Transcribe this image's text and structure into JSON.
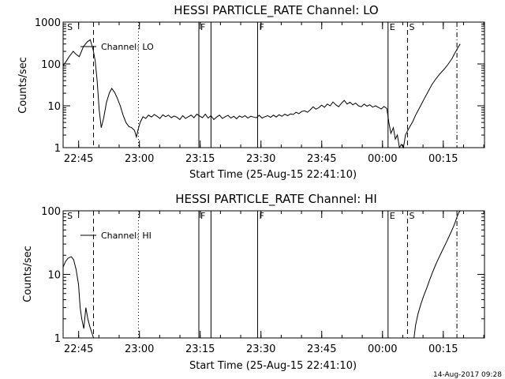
{
  "figure": {
    "timestamp": "14-Aug-2017 09:28"
  },
  "chart_data": [
    {
      "type": "line",
      "title": "HESSI PARTICLE_RATE Channel: LO",
      "xlabel": "Start Time (25-Aug-15 22:41:10)",
      "ylabel": "Counts/sec",
      "y_scale": "log",
      "ylim": [
        1,
        1000
      ],
      "y_ticks": [
        {
          "v": 1,
          "label": "1"
        },
        {
          "v": 10,
          "label": "10"
        },
        {
          "v": 100,
          "label": "100"
        },
        {
          "v": 1000,
          "label": "1000"
        }
      ],
      "x_ticks": [
        "22:45",
        "23:00",
        "23:15",
        "23:30",
        "23:45",
        "00:00",
        "00:15"
      ],
      "x_tick_minutes": [
        3.83,
        18.83,
        33.83,
        48.83,
        63.83,
        78.83,
        93.83
      ],
      "xlim_minutes": [
        0,
        104
      ],
      "legend": {
        "label": "Channel: LO",
        "position": "top-left"
      },
      "markers": [
        {
          "minute": 0.6,
          "label": "S",
          "style": "none"
        },
        {
          "minute": 7.5,
          "label": "",
          "style": "dashed"
        },
        {
          "minute": 18.6,
          "label": "",
          "style": "dotted"
        },
        {
          "minute": 33.5,
          "label": "F",
          "style": "solid"
        },
        {
          "minute": 36.5,
          "label": "",
          "style": "solid"
        },
        {
          "minute": 48.0,
          "label": "F",
          "style": "solid"
        },
        {
          "minute": 80.2,
          "label": "E",
          "style": "solid"
        },
        {
          "minute": 85.0,
          "label": "S",
          "style": "dashed"
        },
        {
          "minute": 97.2,
          "label": "",
          "style": "dashdot"
        }
      ],
      "series": [
        {
          "name": "Channel: LO",
          "points": [
            [
              0,
              90
            ],
            [
              0.6,
              110
            ],
            [
              1.5,
              150
            ],
            [
              2.5,
              200
            ],
            [
              3.2,
              170
            ],
            [
              4,
              150
            ],
            [
              5,
              260
            ],
            [
              6,
              340
            ],
            [
              6.7,
              380
            ],
            [
              7.4,
              220
            ],
            [
              7.9,
              120
            ],
            [
              8.4,
              40
            ],
            [
              8.9,
              8
            ],
            [
              9.4,
              3
            ],
            [
              10,
              5
            ],
            [
              10.7,
              12
            ],
            [
              11.4,
              20
            ],
            [
              12,
              26
            ],
            [
              12.7,
              21
            ],
            [
              13.4,
              15
            ],
            [
              14.1,
              10
            ],
            [
              14.8,
              6
            ],
            [
              15.5,
              4
            ],
            [
              16.2,
              3.2
            ],
            [
              16.9,
              3
            ],
            [
              17.6,
              2.6
            ],
            [
              18.1,
              1.8
            ],
            [
              18.5,
              2.7
            ],
            [
              19,
              4
            ],
            [
              19.7,
              5.5
            ],
            [
              20.4,
              5
            ],
            [
              21.1,
              6
            ],
            [
              21.8,
              5.4
            ],
            [
              22.5,
              6.2
            ],
            [
              23.2,
              5.6
            ],
            [
              23.9,
              5
            ],
            [
              24.6,
              6.1
            ],
            [
              25.3,
              5.5
            ],
            [
              26,
              6
            ],
            [
              26.7,
              5.2
            ],
            [
              27.4,
              5.7
            ],
            [
              28.1,
              5.3
            ],
            [
              28.8,
              4.7
            ],
            [
              29.5,
              5.8
            ],
            [
              30.2,
              5
            ],
            [
              30.9,
              5.5
            ],
            [
              31.6,
              6
            ],
            [
              32.3,
              5.2
            ],
            [
              33,
              6.3
            ],
            [
              33.7,
              5.7
            ],
            [
              34.4,
              5.2
            ],
            [
              35.1,
              6.3
            ],
            [
              35.8,
              5.1
            ],
            [
              36.5,
              5.8
            ],
            [
              37.2,
              4.7
            ],
            [
              37.9,
              5.4
            ],
            [
              38.6,
              6
            ],
            [
              39.3,
              5
            ],
            [
              40,
              5.5
            ],
            [
              40.7,
              5.9
            ],
            [
              41.4,
              5.1
            ],
            [
              42.1,
              5.6
            ],
            [
              42.8,
              4.9
            ],
            [
              43.5,
              5.7
            ],
            [
              44.2,
              5.3
            ],
            [
              44.9,
              5.8
            ],
            [
              45.6,
              5.1
            ],
            [
              46.3,
              5.6
            ],
            [
              47,
              5.4
            ],
            [
              47.7,
              5.2
            ],
            [
              48.4,
              5.9
            ],
            [
              49.1,
              5.1
            ],
            [
              49.8,
              5.5
            ],
            [
              50.5,
              5.8
            ],
            [
              51.2,
              5.3
            ],
            [
              51.9,
              6
            ],
            [
              52.6,
              5.4
            ],
            [
              53.3,
              6.1
            ],
            [
              54,
              5.6
            ],
            [
              54.7,
              6.3
            ],
            [
              55.4,
              5.8
            ],
            [
              56.1,
              6.4
            ],
            [
              56.8,
              6.2
            ],
            [
              57.5,
              7
            ],
            [
              58.2,
              6.5
            ],
            [
              58.9,
              7.3
            ],
            [
              59.6,
              7.6
            ],
            [
              60.3,
              7
            ],
            [
              61,
              8
            ],
            [
              61.7,
              9.5
            ],
            [
              62.4,
              8.3
            ],
            [
              63.1,
              9
            ],
            [
              63.8,
              10.4
            ],
            [
              64.5,
              9.2
            ],
            [
              65.2,
              11
            ],
            [
              65.9,
              10
            ],
            [
              66.6,
              12.3
            ],
            [
              67.3,
              10.6
            ],
            [
              68,
              9.5
            ],
            [
              68.7,
              11.5
            ],
            [
              69.4,
              13.5
            ],
            [
              70.1,
              11
            ],
            [
              70.8,
              12.2
            ],
            [
              71.5,
              10.6
            ],
            [
              72.2,
              11.6
            ],
            [
              72.9,
              10
            ],
            [
              73.6,
              9.5
            ],
            [
              74.3,
              11
            ],
            [
              75,
              9.8
            ],
            [
              75.7,
              10.6
            ],
            [
              76.4,
              9.3
            ],
            [
              77.1,
              10
            ],
            [
              77.8,
              9.2
            ],
            [
              78.5,
              8.4
            ],
            [
              79.2,
              9.6
            ],
            [
              79.9,
              8.6
            ],
            [
              80.4,
              4
            ],
            [
              80.9,
              2.2
            ],
            [
              81.5,
              3
            ],
            [
              82,
              1.6
            ],
            [
              82.5,
              2
            ],
            [
              83,
              1
            ],
            [
              83.5,
              1.2
            ],
            [
              84,
              1
            ],
            [
              84.5,
              2
            ],
            [
              85,
              2.5
            ],
            [
              85.6,
              3.2
            ],
            [
              86.3,
              4.2
            ],
            [
              87,
              6
            ],
            [
              88,
              9
            ],
            [
              89,
              14
            ],
            [
              90,
              21
            ],
            [
              91,
              32
            ],
            [
              92,
              44
            ],
            [
              93,
              58
            ],
            [
              94,
              74
            ],
            [
              95,
              98
            ],
            [
              96,
              135
            ],
            [
              96.8,
              190
            ],
            [
              97.5,
              250
            ],
            [
              98,
              300
            ]
          ]
        }
      ]
    },
    {
      "type": "line",
      "title": "HESSI PARTICLE_RATE Channel: HI",
      "xlabel": "Start Time (25-Aug-15 22:41:10)",
      "ylabel": "Counts/sec",
      "y_scale": "log",
      "ylim": [
        1,
        100
      ],
      "y_ticks": [
        {
          "v": 1,
          "label": "1"
        },
        {
          "v": 10,
          "label": "10"
        },
        {
          "v": 100,
          "label": "100"
        }
      ],
      "x_ticks": [
        "22:45",
        "23:00",
        "23:15",
        "23:30",
        "23:45",
        "00:00",
        "00:15"
      ],
      "x_tick_minutes": [
        3.83,
        18.83,
        33.83,
        48.83,
        63.83,
        78.83,
        93.83
      ],
      "xlim_minutes": [
        0,
        104
      ],
      "legend": {
        "label": "Channel: HI",
        "position": "top-left"
      },
      "markers": [
        {
          "minute": 0.6,
          "label": "S",
          "style": "none"
        },
        {
          "minute": 7.5,
          "label": "",
          "style": "dashed"
        },
        {
          "minute": 18.6,
          "label": "",
          "style": "dotted"
        },
        {
          "minute": 33.5,
          "label": "F",
          "style": "solid"
        },
        {
          "minute": 36.5,
          "label": "",
          "style": "solid"
        },
        {
          "minute": 48.0,
          "label": "F",
          "style": "solid"
        },
        {
          "minute": 80.2,
          "label": "E",
          "style": "solid"
        },
        {
          "minute": 85.0,
          "label": "S",
          "style": "dashed"
        },
        {
          "minute": 97.2,
          "label": "",
          "style": "dashdot"
        }
      ],
      "series": [
        {
          "name": "Channel: HI",
          "points": [
            [
              0,
              13
            ],
            [
              0.6,
              16
            ],
            [
              1.2,
              18
            ],
            [
              2,
              19
            ],
            [
              2.6,
              17
            ],
            [
              3.2,
              12
            ],
            [
              3.8,
              7
            ],
            [
              4.2,
              3
            ],
            [
              4.6,
              2
            ],
            [
              5.1,
              1.4
            ],
            [
              5.6,
              3
            ],
            [
              6.1,
              2
            ],
            [
              6.6,
              1.5
            ],
            [
              7.1,
              1.2
            ],
            [
              7.5,
              1
            ]
          ]
        },
        {
          "name": "Channel: HI",
          "points": [
            [
              86.6,
              1
            ],
            [
              87,
              1.6
            ],
            [
              87.6,
              2.4
            ],
            [
              88.3,
              3.4
            ],
            [
              89,
              4.6
            ],
            [
              89.7,
              6
            ],
            [
              90.4,
              8
            ],
            [
              91.1,
              10.5
            ],
            [
              91.8,
              13.5
            ],
            [
              92.5,
              17
            ],
            [
              93.2,
              21
            ],
            [
              93.9,
              26
            ],
            [
              94.6,
              32
            ],
            [
              95.3,
              40
            ],
            [
              96,
              50
            ],
            [
              96.7,
              64
            ],
            [
              97.2,
              80
            ],
            [
              97.7,
              95
            ],
            [
              98,
              100
            ]
          ]
        }
      ]
    }
  ]
}
